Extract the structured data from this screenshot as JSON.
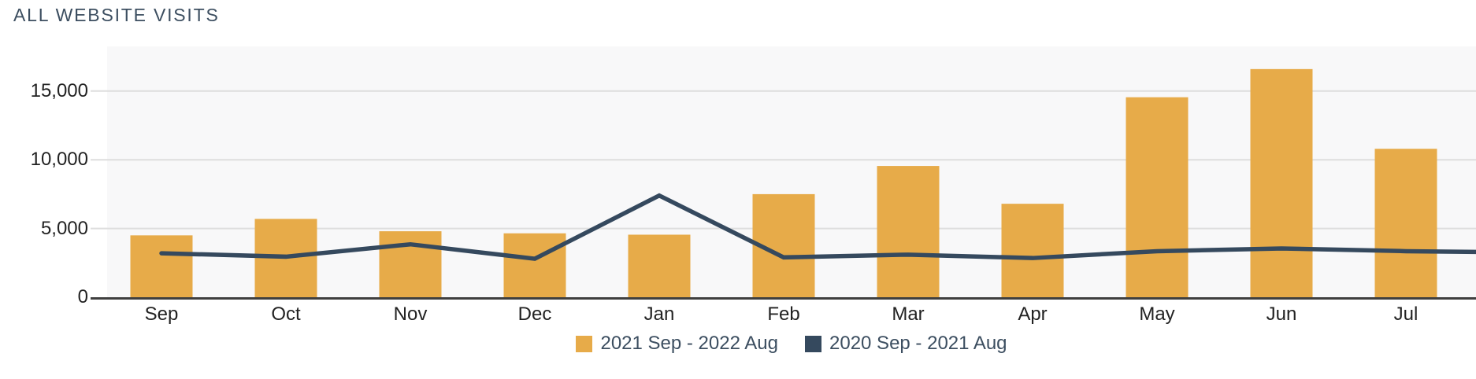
{
  "header": {
    "title": "ALL WEBSITE VISITS"
  },
  "colors": {
    "bar": "#E7AB49",
    "line": "#35495E",
    "plot_background": "#F8F8F9",
    "gridline": "#DEDEDE",
    "axis_line": "#3F3F3F",
    "tick_text": "#222222",
    "title_text": "#3C4E60"
  },
  "chart_data": {
    "type": "bar",
    "title": "ALL WEBSITE VISITS",
    "categories": [
      "Sep",
      "Oct",
      "Nov",
      "Dec",
      "Jan",
      "Feb",
      "Mar",
      "Apr",
      "May",
      "Jun",
      "Jul"
    ],
    "series": [
      {
        "name": "2021 Sep - 2022 Aug",
        "type": "bar",
        "color": "#E7AB49",
        "values": [
          4500,
          5700,
          4800,
          4650,
          4550,
          7500,
          9550,
          6800,
          14550,
          16600,
          10800
        ]
      },
      {
        "name": "2020 Sep - 2021 Aug",
        "type": "line",
        "color": "#35495E",
        "values": [
          3200,
          2950,
          3850,
          2800,
          7400,
          2900,
          3100,
          2850,
          3350,
          3550,
          3350
        ],
        "clipped_edge_value": 3300
      }
    ],
    "xlabel": "",
    "ylabel": "",
    "yticks": [
      {
        "value": 0,
        "label": "0"
      },
      {
        "value": 5000,
        "label": "5,000"
      },
      {
        "value": 10000,
        "label": "10,000"
      },
      {
        "value": 15000,
        "label": "15,000"
      }
    ],
    "ylim": [
      0,
      18250
    ],
    "grid": true,
    "legend_position": "bottom"
  }
}
